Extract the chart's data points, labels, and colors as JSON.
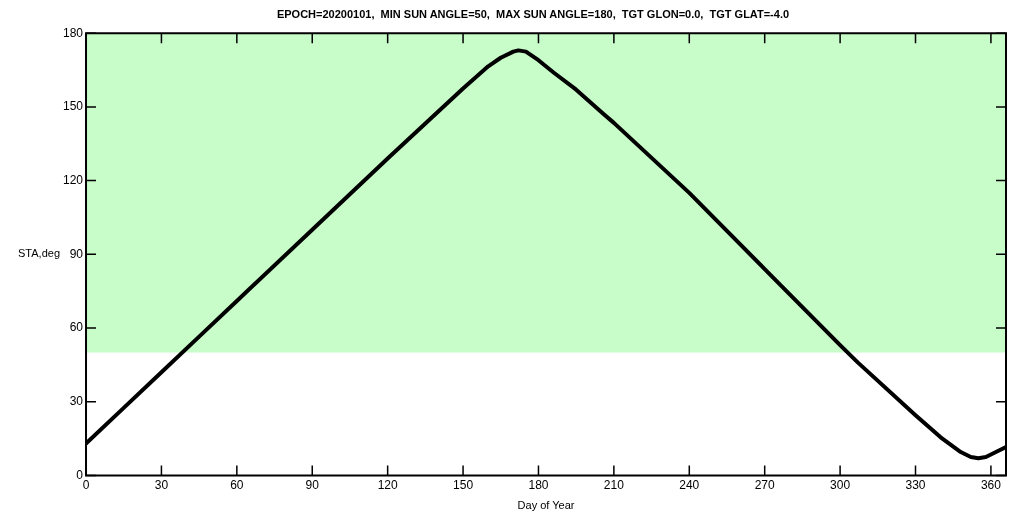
{
  "chart_data": {
    "type": "line",
    "title": "EPOCH=20200101,  MIN SUN ANGLE=50,  MAX SUN ANGLE=180,  TGT GLON=0.0,  TGT GLAT=-4.0",
    "xlabel": "Day of Year",
    "ylabel": "STA,deg",
    "series": [
      {
        "color": "#000000",
        "x": [
          0,
          15,
          30,
          45,
          60,
          90,
          120,
          150,
          160,
          165,
          170,
          172,
          175,
          180,
          186,
          195,
          206,
          210,
          240,
          270,
          300,
          307,
          330,
          340,
          348,
          352,
          355,
          358,
          362,
          366
        ],
        "values": [
          13,
          27.5,
          42,
          56.5,
          71,
          100,
          129,
          157.5,
          166.5,
          170,
          172.5,
          173,
          172.5,
          169,
          164,
          157,
          147,
          143.5,
          115,
          84,
          53,
          46,
          24.5,
          15.5,
          9.5,
          7.5,
          7,
          7.5,
          9.5,
          11.5
        ]
      }
    ],
    "bands": [
      {
        "axis": "y",
        "from": 50,
        "to": 180,
        "color": "#c8fcc8"
      }
    ],
    "xlim": [
      0,
      366
    ],
    "xticks": [
      0,
      30,
      60,
      90,
      120,
      150,
      180,
      210,
      240,
      270,
      300,
      330,
      360
    ],
    "ylim": [
      0,
      180
    ],
    "yticks": [
      0,
      30,
      60,
      90,
      120,
      150,
      180
    ],
    "grid": false,
    "legend": false,
    "marker": "none",
    "line_style": "solid"
  }
}
